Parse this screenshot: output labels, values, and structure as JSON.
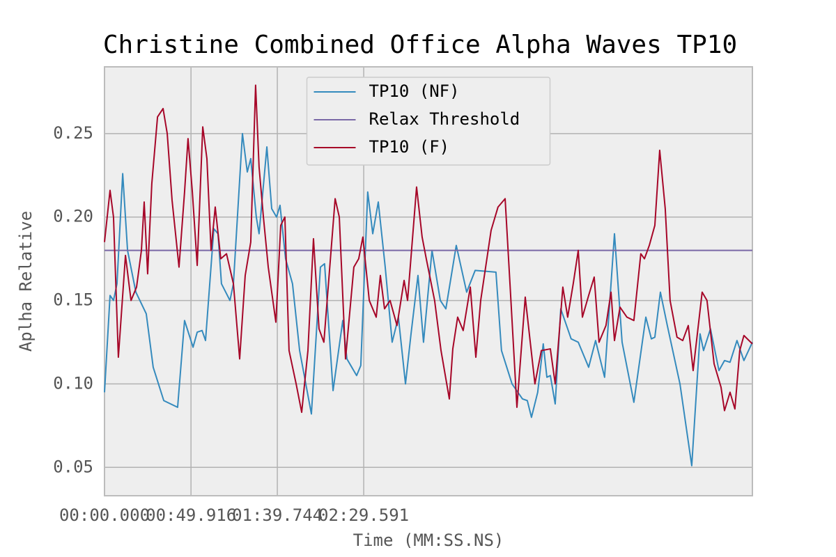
{
  "chart_data": {
    "type": "line",
    "title": "Christine Combined Office Alpha Waves TP10",
    "x_label": "Time (MM:SS.NS)",
    "y_label": "Aplha Relative",
    "xlim": [
      0,
      373.9
    ],
    "ylim": [
      0.033,
      0.29
    ],
    "xticks": [
      {
        "value": 0,
        "label": "00:00.000"
      },
      {
        "value": 49.916,
        "label": "00:49.916"
      },
      {
        "value": 99.744,
        "label": "01:39.744"
      },
      {
        "value": 149.591,
        "label": "02:29.591"
      }
    ],
    "yticks": [
      0.05,
      {
        "value": 0.1,
        "label": "0.10"
      },
      0.15,
      {
        "value": 0.2,
        "label": "0.20"
      },
      0.25
    ],
    "grid": true,
    "legend": "upper center",
    "series": [
      {
        "name": "TP10 (NF)",
        "color": "#348abd",
        "x": [
          0,
          3.2,
          5.2,
          7.2,
          10.5,
          13.3,
          18.1,
          24.1,
          28.1,
          34.2,
          42.2,
          46.2,
          51.1,
          53.5,
          56.3,
          58.3,
          63.1,
          65.5,
          67.5,
          72.4,
          74.4,
          79.6,
          82.4,
          84.4,
          87.6,
          89.2,
          93.7,
          96.5,
          99.3,
          101.3,
          104.5,
          108.5,
          112.6,
          119.4,
          124.6,
          127.0,
          131.9,
          137.5,
          139.9,
          142.7,
          145.5,
          147.9,
          151.9,
          154.8,
          158.0,
          162.0,
          166.0,
          169.6,
          173.7,
          176.9,
          180.9,
          184.1,
          189.0,
          193.8,
          197.0,
          203.0,
          209.0,
          213.9,
          225.9,
          229.1,
          235.2,
          241.2,
          244.0,
          246.4,
          250.0,
          253.2,
          255.3,
          257.3,
          260.1,
          263.3,
          269.3,
          273.4,
          279.4,
          283.4,
          288.6,
          294.3,
          298.7,
          305.5,
          312.4,
          315.6,
          317.6,
          320.8,
          324.8,
          332.1,
          338.9,
          343.7,
          345.7,
          349.7,
          354.6,
          357.8,
          361.0,
          365.0,
          369.0,
          373.9
        ],
        "values": [
          0.095,
          0.153,
          0.15,
          0.16,
          0.226,
          0.18,
          0.155,
          0.142,
          0.11,
          0.09,
          0.086,
          0.138,
          0.122,
          0.131,
          0.132,
          0.126,
          0.193,
          0.19,
          0.16,
          0.15,
          0.16,
          0.25,
          0.227,
          0.235,
          0.2,
          0.19,
          0.242,
          0.205,
          0.2,
          0.207,
          0.175,
          0.16,
          0.12,
          0.082,
          0.17,
          0.172,
          0.096,
          0.138,
          0.115,
          0.11,
          0.105,
          0.111,
          0.215,
          0.19,
          0.209,
          0.17,
          0.125,
          0.14,
          0.1,
          0.13,
          0.165,
          0.125,
          0.18,
          0.15,
          0.145,
          0.183,
          0.155,
          0.168,
          0.167,
          0.12,
          0.1,
          0.091,
          0.09,
          0.08,
          0.095,
          0.124,
          0.104,
          0.105,
          0.088,
          0.145,
          0.127,
          0.125,
          0.11,
          0.126,
          0.104,
          0.19,
          0.125,
          0.089,
          0.14,
          0.127,
          0.128,
          0.155,
          0.135,
          0.1,
          0.051,
          0.13,
          0.12,
          0.133,
          0.108,
          0.114,
          0.113,
          0.126,
          0.114,
          0.125
        ]
      },
      {
        "name": "Relax Threshold",
        "color": "#7a68a6",
        "x": [
          0,
          373.9
        ],
        "values": [
          0.18,
          0.18
        ]
      },
      {
        "name": "TP10 (F)",
        "color": "#a60628",
        "x": [
          0,
          3.2,
          5.2,
          8.0,
          12.1,
          15.3,
          18.5,
          21.3,
          22.9,
          24.9,
          27.3,
          30.6,
          33.8,
          36.2,
          39.0,
          43.0,
          46.2,
          48.2,
          50.7,
          53.5,
          56.7,
          59.1,
          61.5,
          63.9,
          67.1,
          70.4,
          74.4,
          78.0,
          81.2,
          84.4,
          87.2,
          89.2,
          91.7,
          94.5,
          98.9,
          101.7,
          104.1,
          106.5,
          110.6,
          113.8,
          117.4,
          120.6,
          123.8,
          126.6,
          133.1,
          135.5,
          139.1,
          143.9,
          146.7,
          149.1,
          152.8,
          156.8,
          159.2,
          161.6,
          164.8,
          168.8,
          172.9,
          174.9,
          180.1,
          183.3,
          185.7,
          190.5,
          194.2,
          199.0,
          201.0,
          203.8,
          207.0,
          211.1,
          214.3,
          217.1,
          223.1,
          227.1,
          231.2,
          234.0,
          238.0,
          242.8,
          248.4,
          252.1,
          257.3,
          260.1,
          264.5,
          267.3,
          270.5,
          273.4,
          275.8,
          279.4,
          282.6,
          285.4,
          289.4,
          292.3,
          294.3,
          297.5,
          301.5,
          305.5,
          309.5,
          311.6,
          314.4,
          317.6,
          320.4,
          323.6,
          326.4,
          330.4,
          333.7,
          336.9,
          339.7,
          344.9,
          347.7,
          351.8,
          355.8,
          357.8,
          361.0,
          363.8,
          366.6,
          369.0,
          373.9
        ],
        "values": [
          0.185,
          0.216,
          0.2,
          0.116,
          0.177,
          0.15,
          0.158,
          0.18,
          0.209,
          0.166,
          0.22,
          0.26,
          0.265,
          0.25,
          0.21,
          0.17,
          0.215,
          0.247,
          0.215,
          0.171,
          0.254,
          0.235,
          0.18,
          0.206,
          0.175,
          0.178,
          0.16,
          0.115,
          0.165,
          0.185,
          0.279,
          0.23,
          0.2,
          0.17,
          0.137,
          0.195,
          0.2,
          0.12,
          0.1,
          0.083,
          0.12,
          0.187,
          0.133,
          0.125,
          0.211,
          0.2,
          0.115,
          0.17,
          0.175,
          0.188,
          0.15,
          0.14,
          0.165,
          0.145,
          0.15,
          0.135,
          0.162,
          0.15,
          0.218,
          0.188,
          0.175,
          0.15,
          0.12,
          0.091,
          0.121,
          0.14,
          0.132,
          0.158,
          0.116,
          0.15,
          0.192,
          0.206,
          0.211,
          0.16,
          0.086,
          0.152,
          0.1,
          0.12,
          0.121,
          0.1,
          0.158,
          0.14,
          0.16,
          0.18,
          0.14,
          0.153,
          0.164,
          0.125,
          0.135,
          0.155,
          0.126,
          0.146,
          0.14,
          0.138,
          0.178,
          0.175,
          0.183,
          0.195,
          0.24,
          0.205,
          0.15,
          0.128,
          0.126,
          0.135,
          0.108,
          0.155,
          0.15,
          0.112,
          0.098,
          0.084,
          0.095,
          0.085,
          0.12,
          0.129,
          0.124
        ]
      }
    ]
  }
}
